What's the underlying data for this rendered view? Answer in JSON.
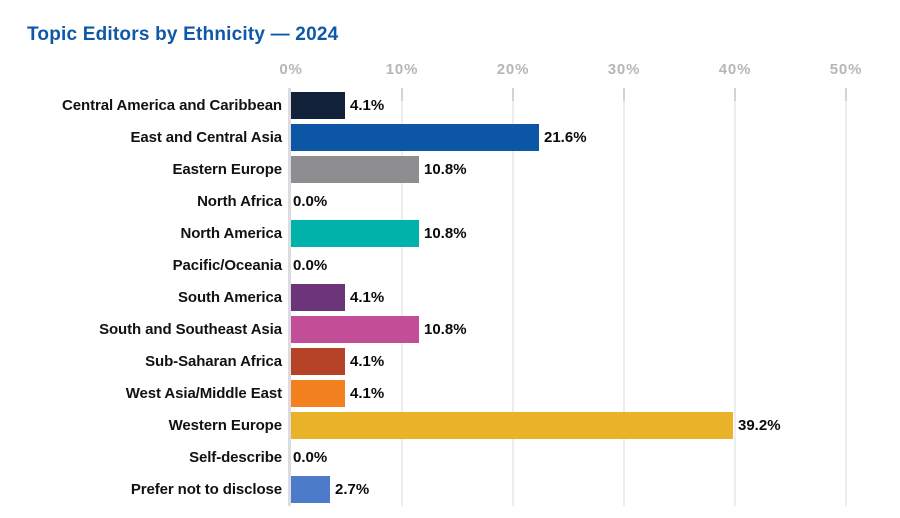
{
  "chart_data": {
    "type": "bar",
    "orientation": "horizontal",
    "title": "Topic Editors by Ethnicity — 2024",
    "categories": [
      "Central America and Caribbean",
      "East and Central Asia",
      "Eastern Europe",
      "North Africa",
      "North America",
      "Pacific/Oceania",
      "South America",
      "South and Southeast Asia",
      "Sub-Saharan Africa",
      "West Asia/Middle East",
      "Western Europe",
      "Self-describe",
      "Prefer not to disclose"
    ],
    "values": [
      4.1,
      21.6,
      10.8,
      0.0,
      10.8,
      0.0,
      4.1,
      10.8,
      4.1,
      4.1,
      39.2,
      0.0,
      2.7
    ],
    "value_labels": [
      "4.1%",
      "21.6%",
      "10.8%",
      "0.0%",
      "10.8%",
      "0.0%",
      "4.1%",
      "10.8%",
      "4.1%",
      "4.1%",
      "39.2%",
      "0.0%",
      "2.7%"
    ],
    "bar_colors": [
      "#12213a",
      "#0b57a6",
      "#8e8e90",
      null,
      "#00b2a9",
      null,
      "#6d3579",
      "#c34e98",
      "#b64328",
      "#f48120",
      "#e9b229",
      null,
      "#4c7bca"
    ],
    "x_ticks": [
      "0%",
      "10%",
      "20%",
      "30%",
      "40%",
      "50%"
    ],
    "x_tick_values": [
      0,
      10,
      20,
      30,
      40,
      50
    ],
    "xlim": [
      0,
      50
    ],
    "xlabel": "",
    "ylabel": "",
    "grid": true,
    "legend": false
  },
  "colors": {
    "title": "#0f58a8",
    "axis_label": "#b4b7ba",
    "gridline": "#ededef",
    "axis_line": "#dcdce0",
    "category_text": "#121212",
    "value_text": "#0b0b0b",
    "background": "#ffffff"
  }
}
